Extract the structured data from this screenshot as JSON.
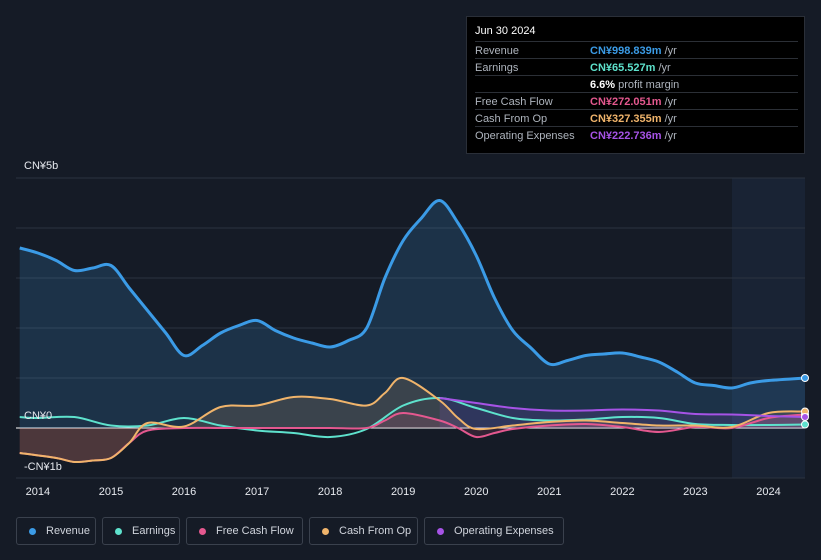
{
  "tooltip": {
    "date": "Jun 30 2024",
    "rows": [
      {
        "label": "Revenue",
        "value": "CN¥998.839m",
        "unit": "/yr",
        "color": "#3b9be6"
      },
      {
        "label": "Earnings",
        "value": "CN¥65.527m",
        "unit": "/yr",
        "color": "#5ee2cd"
      },
      {
        "label": "",
        "value": "6.6%",
        "unit": "profit margin",
        "color": "#ffffff"
      },
      {
        "label": "Free Cash Flow",
        "value": "CN¥272.051m",
        "unit": "/yr",
        "color": "#e4588f"
      },
      {
        "label": "Cash From Op",
        "value": "CN¥327.355m",
        "unit": "/yr",
        "color": "#f0b46b"
      },
      {
        "label": "Operating Expenses",
        "value": "CN¥222.736m",
        "unit": "/yr",
        "color": "#a653e6"
      }
    ]
  },
  "legend": [
    {
      "label": "Revenue",
      "color": "#3b9be6"
    },
    {
      "label": "Earnings",
      "color": "#5ee2cd"
    },
    {
      "label": "Free Cash Flow",
      "color": "#e4588f"
    },
    {
      "label": "Cash From Op",
      "color": "#f0b46b"
    },
    {
      "label": "Operating Expenses",
      "color": "#a653e6"
    }
  ],
  "chart_data": {
    "type": "area",
    "y_top_label": "CN¥5b",
    "y_zero_label": "CN¥0",
    "y_bottom_label": "-CN¥1b",
    "ylim": [
      -1,
      5
    ],
    "xlim": [
      2013.7,
      2024.5
    ],
    "forecast_start": 2023.5,
    "x_ticks": [
      2014,
      2015,
      2016,
      2017,
      2018,
      2019,
      2020,
      2021,
      2022,
      2023,
      2024
    ],
    "x_tick_labels": [
      "2014",
      "2015",
      "2016",
      "2017",
      "2018",
      "2019",
      "2020",
      "2021",
      "2022",
      "2023",
      "2024"
    ],
    "series": [
      {
        "name": "Revenue",
        "color": "#3b9be6",
        "fill": true,
        "points": [
          [
            2013.75,
            3.6
          ],
          [
            2014.0,
            3.5
          ],
          [
            2014.25,
            3.35
          ],
          [
            2014.5,
            3.15
          ],
          [
            2014.75,
            3.2
          ],
          [
            2015.0,
            3.25
          ],
          [
            2015.25,
            2.8
          ],
          [
            2015.5,
            2.35
          ],
          [
            2015.75,
            1.9
          ],
          [
            2016.0,
            1.45
          ],
          [
            2016.25,
            1.65
          ],
          [
            2016.5,
            1.9
          ],
          [
            2016.75,
            2.05
          ],
          [
            2017.0,
            2.15
          ],
          [
            2017.25,
            1.95
          ],
          [
            2017.5,
            1.8
          ],
          [
            2017.75,
            1.7
          ],
          [
            2018.0,
            1.62
          ],
          [
            2018.25,
            1.75
          ],
          [
            2018.5,
            2.0
          ],
          [
            2018.75,
            3.0
          ],
          [
            2019.0,
            3.75
          ],
          [
            2019.25,
            4.2
          ],
          [
            2019.5,
            4.55
          ],
          [
            2019.75,
            4.1
          ],
          [
            2020.0,
            3.45
          ],
          [
            2020.25,
            2.6
          ],
          [
            2020.5,
            1.95
          ],
          [
            2020.75,
            1.6
          ],
          [
            2021.0,
            1.28
          ],
          [
            2021.25,
            1.35
          ],
          [
            2021.5,
            1.45
          ],
          [
            2021.75,
            1.48
          ],
          [
            2022.0,
            1.5
          ],
          [
            2022.25,
            1.42
          ],
          [
            2022.5,
            1.32
          ],
          [
            2022.75,
            1.12
          ],
          [
            2023.0,
            0.9
          ],
          [
            2023.25,
            0.85
          ],
          [
            2023.5,
            0.8
          ],
          [
            2023.75,
            0.9
          ],
          [
            2024.0,
            0.95
          ],
          [
            2024.5,
            1.0
          ]
        ]
      },
      {
        "name": "Earnings",
        "color": "#5ee2cd",
        "fill": false,
        "points": [
          [
            2013.75,
            0.22
          ],
          [
            2014.0,
            0.2
          ],
          [
            2014.5,
            0.22
          ],
          [
            2015.0,
            0.05
          ],
          [
            2015.5,
            0.05
          ],
          [
            2016.0,
            0.2
          ],
          [
            2016.5,
            0.05
          ],
          [
            2017.0,
            -0.05
          ],
          [
            2017.5,
            -0.1
          ],
          [
            2018.0,
            -0.18
          ],
          [
            2018.5,
            -0.02
          ],
          [
            2019.0,
            0.45
          ],
          [
            2019.5,
            0.6
          ],
          [
            2020.0,
            0.4
          ],
          [
            2020.5,
            0.2
          ],
          [
            2021.0,
            0.15
          ],
          [
            2021.5,
            0.17
          ],
          [
            2022.0,
            0.22
          ],
          [
            2022.5,
            0.2
          ],
          [
            2023.0,
            0.08
          ],
          [
            2023.5,
            0.06
          ],
          [
            2024.0,
            0.06
          ],
          [
            2024.5,
            0.07
          ]
        ]
      },
      {
        "name": "Free Cash Flow",
        "color": "#e4588f",
        "fill": true,
        "points": [
          [
            2013.75,
            -0.5
          ],
          [
            2014.25,
            -0.6
          ],
          [
            2014.5,
            -0.68
          ],
          [
            2014.75,
            -0.65
          ],
          [
            2015.0,
            -0.6
          ],
          [
            2015.25,
            -0.3
          ],
          [
            2015.5,
            -0.05
          ],
          [
            2016.0,
            0.0
          ],
          [
            2016.5,
            0.0
          ],
          [
            2017.0,
            0.0
          ],
          [
            2017.5,
            0.0
          ],
          [
            2018.0,
            0.0
          ],
          [
            2018.5,
            0.0
          ],
          [
            2018.75,
            0.15
          ],
          [
            2019.0,
            0.3
          ],
          [
            2019.5,
            0.15
          ],
          [
            2019.75,
            0.0
          ],
          [
            2020.0,
            -0.18
          ],
          [
            2020.25,
            -0.1
          ],
          [
            2020.5,
            -0.02
          ],
          [
            2021.0,
            0.05
          ],
          [
            2021.5,
            0.08
          ],
          [
            2022.0,
            0.02
          ],
          [
            2022.5,
            -0.08
          ],
          [
            2023.0,
            0.02
          ],
          [
            2023.5,
            0.0
          ],
          [
            2024.0,
            0.2
          ],
          [
            2024.5,
            0.27
          ]
        ]
      },
      {
        "name": "Cash From Op",
        "color": "#f0b46b",
        "fill": true,
        "points": [
          [
            2013.75,
            -0.5
          ],
          [
            2014.25,
            -0.6
          ],
          [
            2014.5,
            -0.68
          ],
          [
            2014.75,
            -0.65
          ],
          [
            2015.0,
            -0.6
          ],
          [
            2015.25,
            -0.3
          ],
          [
            2015.5,
            0.1
          ],
          [
            2016.0,
            0.03
          ],
          [
            2016.5,
            0.42
          ],
          [
            2017.0,
            0.45
          ],
          [
            2017.5,
            0.62
          ],
          [
            2018.0,
            0.58
          ],
          [
            2018.5,
            0.45
          ],
          [
            2018.75,
            0.7
          ],
          [
            2019.0,
            1.0
          ],
          [
            2019.5,
            0.55
          ],
          [
            2019.75,
            0.2
          ],
          [
            2020.0,
            -0.02
          ],
          [
            2020.5,
            0.05
          ],
          [
            2021.0,
            0.12
          ],
          [
            2021.5,
            0.15
          ],
          [
            2022.0,
            0.1
          ],
          [
            2022.5,
            0.05
          ],
          [
            2023.0,
            0.05
          ],
          [
            2023.5,
            0.02
          ],
          [
            2024.0,
            0.3
          ],
          [
            2024.5,
            0.33
          ]
        ]
      },
      {
        "name": "Operating Expenses",
        "color": "#a653e6",
        "fill": true,
        "points": [
          [
            2019.5,
            0.6
          ],
          [
            2020.0,
            0.5
          ],
          [
            2020.5,
            0.4
          ],
          [
            2021.0,
            0.35
          ],
          [
            2021.5,
            0.35
          ],
          [
            2022.0,
            0.37
          ],
          [
            2022.5,
            0.35
          ],
          [
            2023.0,
            0.28
          ],
          [
            2023.5,
            0.27
          ],
          [
            2024.0,
            0.24
          ],
          [
            2024.5,
            0.22
          ]
        ]
      }
    ]
  }
}
